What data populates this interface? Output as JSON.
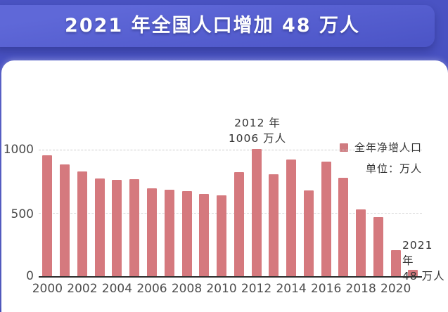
{
  "header": {
    "title": "2021 年全国人口增加 48 万人",
    "background_color": "#4a53c3",
    "banner_color": "#5660cf"
  },
  "legend": {
    "label": "全年净增人口",
    "unit": "单位：万人",
    "swatch_color": "#cf7b80"
  },
  "chart_data": {
    "type": "bar",
    "title": "2021 年全国人口增加 48 万人",
    "series_name": "全年净增人口",
    "unit": "万人",
    "categories": [
      "2000",
      "2001",
      "2002",
      "2003",
      "2004",
      "2005",
      "2006",
      "2007",
      "2008",
      "2009",
      "2010",
      "2011",
      "2012",
      "2013",
      "2014",
      "2015",
      "2016",
      "2017",
      "2018",
      "2019",
      "2020",
      "2021"
    ],
    "values": [
      957,
      884,
      826,
      774,
      761,
      768,
      692,
      681,
      673,
      652,
      641,
      825,
      1006,
      804,
      920,
      680,
      906,
      779,
      530,
      467,
      204,
      48
    ],
    "xlabel": "",
    "ylabel": "",
    "ylim": [
      0,
      1000
    ],
    "yticks": [
      1000,
      500,
      0
    ],
    "ytick_labels": [
      "1000",
      "500",
      "0"
    ],
    "x_tick_labels": [
      "2000",
      "2002",
      "2004",
      "2006",
      "2008",
      "2010",
      "2012",
      "2014",
      "2016",
      "2018",
      "2020"
    ],
    "grid": "horizontal dashed at 500 and 1000",
    "legend_position": "top-right",
    "bar_color": "#d5797e",
    "annotations": [
      {
        "line1": "2012 年",
        "line2": "1006 万人",
        "target_year": "2012"
      },
      {
        "line1": "2021 年",
        "line2": "48 万人",
        "target_year": "2021"
      }
    ]
  }
}
